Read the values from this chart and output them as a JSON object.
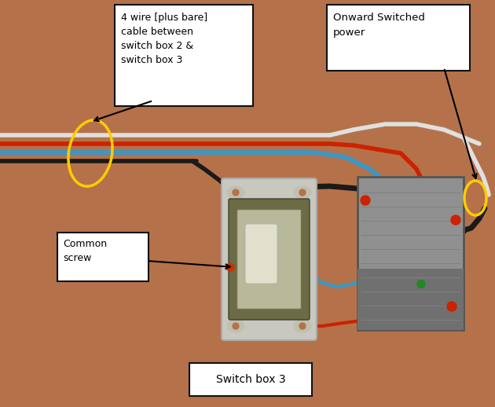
{
  "bg_color": "#b5724a",
  "fig_width": 6.3,
  "fig_height": 5.18,
  "dpi": 100,
  "wire_colors": {
    "white": "#e0e0e0",
    "red": "#cc2200",
    "blue": "#3399cc",
    "black": "#1a1a1a",
    "brown": "#3a2010"
  },
  "annotation_bg": "#ffffff",
  "annotation_border": "#111111",
  "label_4wire": "4 wire [plus bare]\ncable between\nswitch box 2 &\nswitch box 3",
  "label_onward": "Onward Switched\npower",
  "label_common": "Common\nscrew",
  "label_switchbox": "Switch box 3",
  "ellipse_color": "#ffcc00",
  "switch_body_color": "#6b6b45",
  "switch_plate_color": "#b8b89a",
  "switch_toggle_color": "#e0e0cc",
  "metal_color": "#909090",
  "metal_dark": "#707070"
}
